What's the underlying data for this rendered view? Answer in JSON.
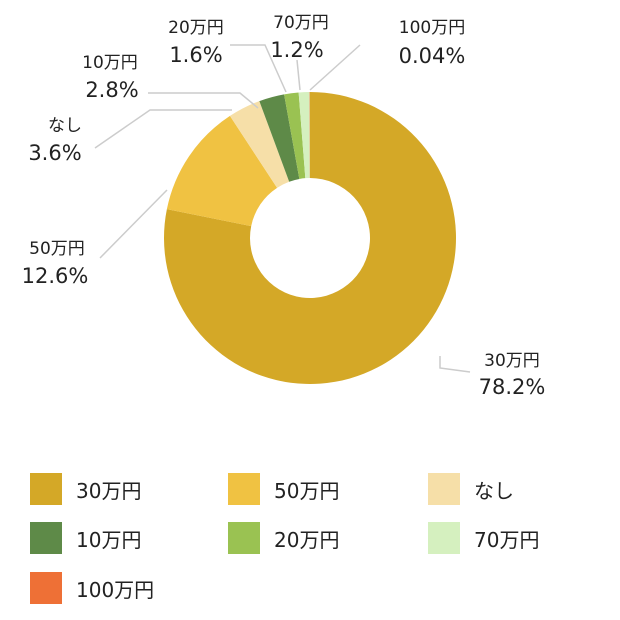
{
  "chart_data": {
    "type": "pie",
    "donut": true,
    "categories": [
      "30万円",
      "50万円",
      "なし",
      "10万円",
      "20万円",
      "70万円",
      "100万円"
    ],
    "values": [
      78.2,
      12.6,
      3.6,
      2.8,
      1.6,
      1.2,
      0.04
    ],
    "labels": [
      "78.2%",
      "12.6%",
      "3.6%",
      "2.8%",
      "1.6%",
      "1.2%",
      "0.04%"
    ],
    "colors": [
      "#D4A827",
      "#F0C242",
      "#F6DFA8",
      "#5E8A48",
      "#9AC252",
      "#D5F0BF",
      "#EE7036"
    ],
    "legend": "bottom"
  }
}
